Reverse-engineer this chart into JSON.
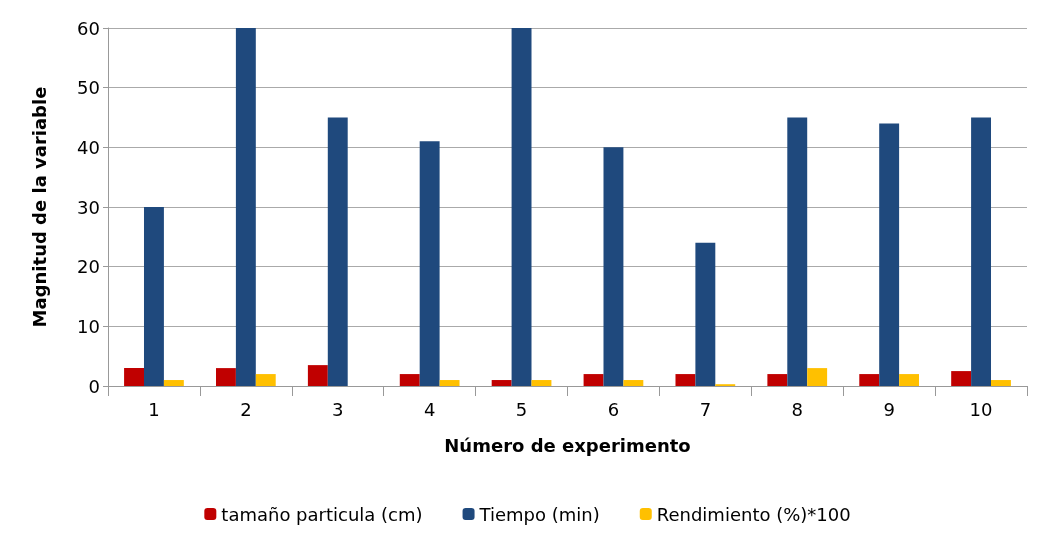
{
  "chart_data": {
    "type": "bar",
    "xlabel": "Número de experimento",
    "ylabel": "Magnitud de la variable",
    "categories": [
      "1",
      "2",
      "3",
      "4",
      "5",
      "6",
      "7",
      "8",
      "9",
      "10"
    ],
    "series": [
      {
        "name": "tamaño particula (cm)",
        "color": "#c00000",
        "values": [
          3,
          3,
          3.5,
          2,
          1,
          2,
          2,
          2,
          2,
          2.5
        ]
      },
      {
        "name": "Tiempo (min)",
        "color": "#1f497d",
        "values": [
          30,
          60,
          45,
          41,
          60,
          40,
          24,
          45,
          44,
          45
        ]
      },
      {
        "name": "Rendimiento (%)*100",
        "color": "#ffc000",
        "values": [
          1,
          2,
          0,
          1,
          1,
          1,
          0.3,
          3,
          2,
          1
        ]
      }
    ],
    "ylim": [
      0,
      60
    ],
    "yticks": [
      0,
      10,
      20,
      30,
      40,
      50,
      60
    ],
    "grid": "y",
    "legend": "bottom"
  }
}
